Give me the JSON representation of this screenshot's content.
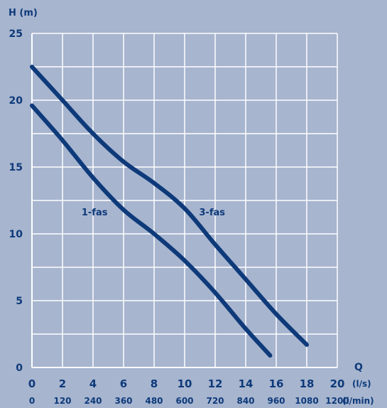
{
  "chart_data": {
    "type": "line",
    "title": "",
    "xlabel": "Q",
    "ylabel": "H (m)",
    "x_unit": "(l/s)",
    "x2_unit": "(l/min)",
    "xlim": [
      0,
      20
    ],
    "ylim": [
      0,
      25
    ],
    "grid": true,
    "x_ticks": [
      "0",
      "2",
      "4",
      "6",
      "8",
      "10",
      "12",
      "14",
      "16",
      "18",
      "20"
    ],
    "x2_ticks": [
      "0",
      "120",
      "240",
      "360",
      "480",
      "600",
      "720",
      "840",
      "960",
      "1080",
      "1200"
    ],
    "y_ticks": [
      "0",
      "5",
      "10",
      "15",
      "20",
      "25"
    ],
    "colors": {
      "background": "#a7b5cf",
      "grid": "#ffffff",
      "curve": "#0e3a7a",
      "text": "#0e3a7a"
    },
    "series": [
      {
        "name": "3-fas",
        "label_at": [
          11.8,
          11.6
        ],
        "x": [
          0,
          2,
          4,
          6,
          8,
          10,
          12,
          14,
          16,
          18
        ],
        "y": [
          22.5,
          20.0,
          17.5,
          15.4,
          13.8,
          11.9,
          9.2,
          6.6,
          4.0,
          1.7
        ]
      },
      {
        "name": "1-fas",
        "label_at": [
          4.1,
          11.6
        ],
        "x": [
          0,
          2,
          4,
          6,
          8,
          10,
          12,
          14,
          15.6
        ],
        "y": [
          19.6,
          17.0,
          14.2,
          11.8,
          10.0,
          8.0,
          5.6,
          2.9,
          0.9
        ]
      }
    ]
  }
}
